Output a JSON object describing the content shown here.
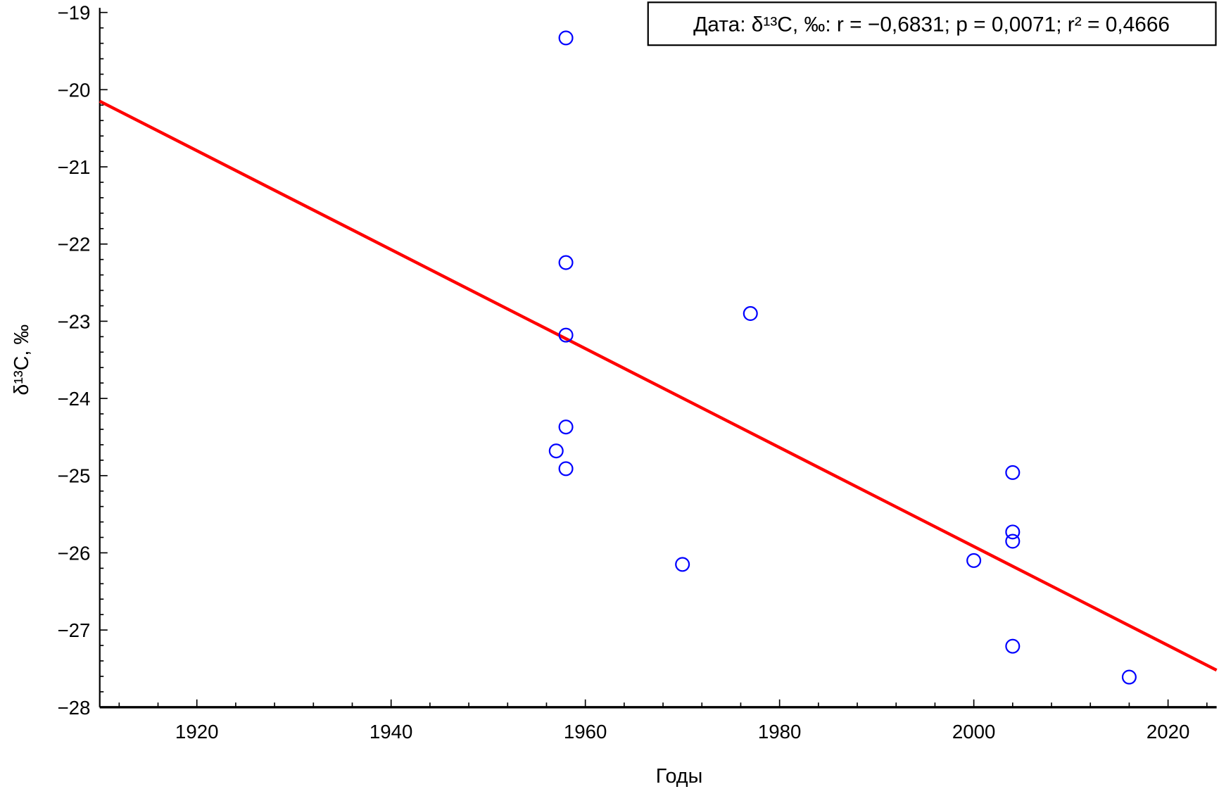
{
  "chart_data": {
    "type": "scatter",
    "title": "",
    "legend_text": "Дата: δ¹³C, ‰: r = −0,6831; p = 0,0071; r² = 0,4666",
    "legend_placement": "top-right",
    "xlabel": "Годы",
    "ylabel": "δ¹³C, ‰",
    "xlim": [
      1910,
      2025
    ],
    "ylim": [
      -28,
      -19
    ],
    "xticks": [
      1920,
      1940,
      1960,
      1980,
      2000,
      2020
    ],
    "xtick_labels": [
      "1920",
      "1940",
      "1960",
      "1980",
      "2000",
      "2020"
    ],
    "yticks": [
      -19,
      -20,
      -21,
      -22,
      -23,
      -24,
      -25,
      -26,
      -27,
      -28
    ],
    "ytick_labels": [
      "−19",
      "−20",
      "−21",
      "−22",
      "−23",
      "−24",
      "−25",
      "−26",
      "−27",
      "−28"
    ],
    "grid": false,
    "series": [
      {
        "name": "δ¹³C, ‰",
        "marker": "circle-open",
        "color": "#0000ff",
        "points": [
          [
            1958,
            -19.33
          ],
          [
            1958,
            -22.24
          ],
          [
            1958,
            -23.18
          ],
          [
            1977,
            -22.9
          ],
          [
            1958,
            -24.37
          ],
          [
            1957,
            -24.68
          ],
          [
            1958,
            -24.91
          ],
          [
            1970,
            -26.15
          ],
          [
            2000,
            -26.1
          ],
          [
            2004,
            -24.96
          ],
          [
            2004,
            -25.73
          ],
          [
            2004,
            -25.85
          ],
          [
            2004,
            -27.21
          ],
          [
            2016,
            -27.61
          ]
        ]
      }
    ],
    "fit_line": {
      "color": "#ff0000",
      "x": [
        1910,
        2025
      ],
      "y": [
        -20.15,
        -27.52
      ]
    }
  }
}
